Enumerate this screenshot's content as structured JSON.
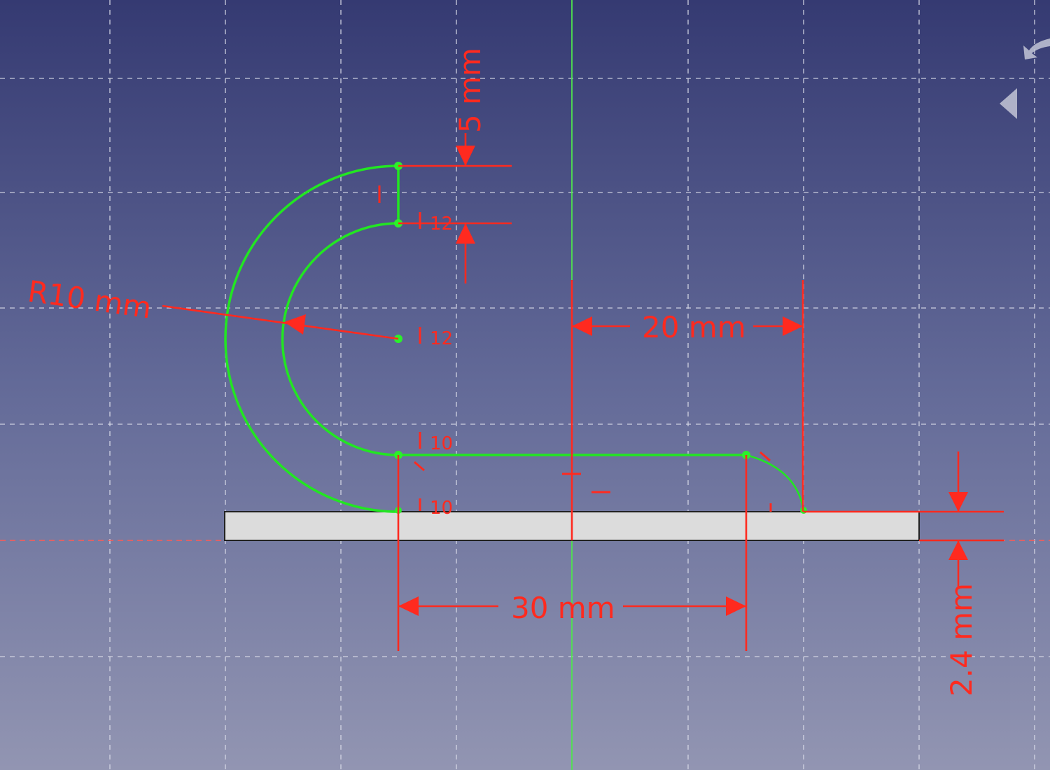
{
  "dimensions": {
    "radius": "R10 mm",
    "top_gap": "5 mm",
    "right_offset": "20 mm",
    "bottom_length": "30 mm",
    "thickness": "2.4 mm"
  },
  "constraints": {
    "c1": "12",
    "c2": "12",
    "c3": "10",
    "c4": "10"
  },
  "colors": {
    "geometry": "#22e622",
    "constraints": "#ff2a1f",
    "pad": "#dcdcdc",
    "background_top": "#353a72",
    "background_bottom": "#9295b2"
  },
  "icons": [
    "navigation-cube-arrow-icon",
    "navigation-cube-left-icon"
  ]
}
